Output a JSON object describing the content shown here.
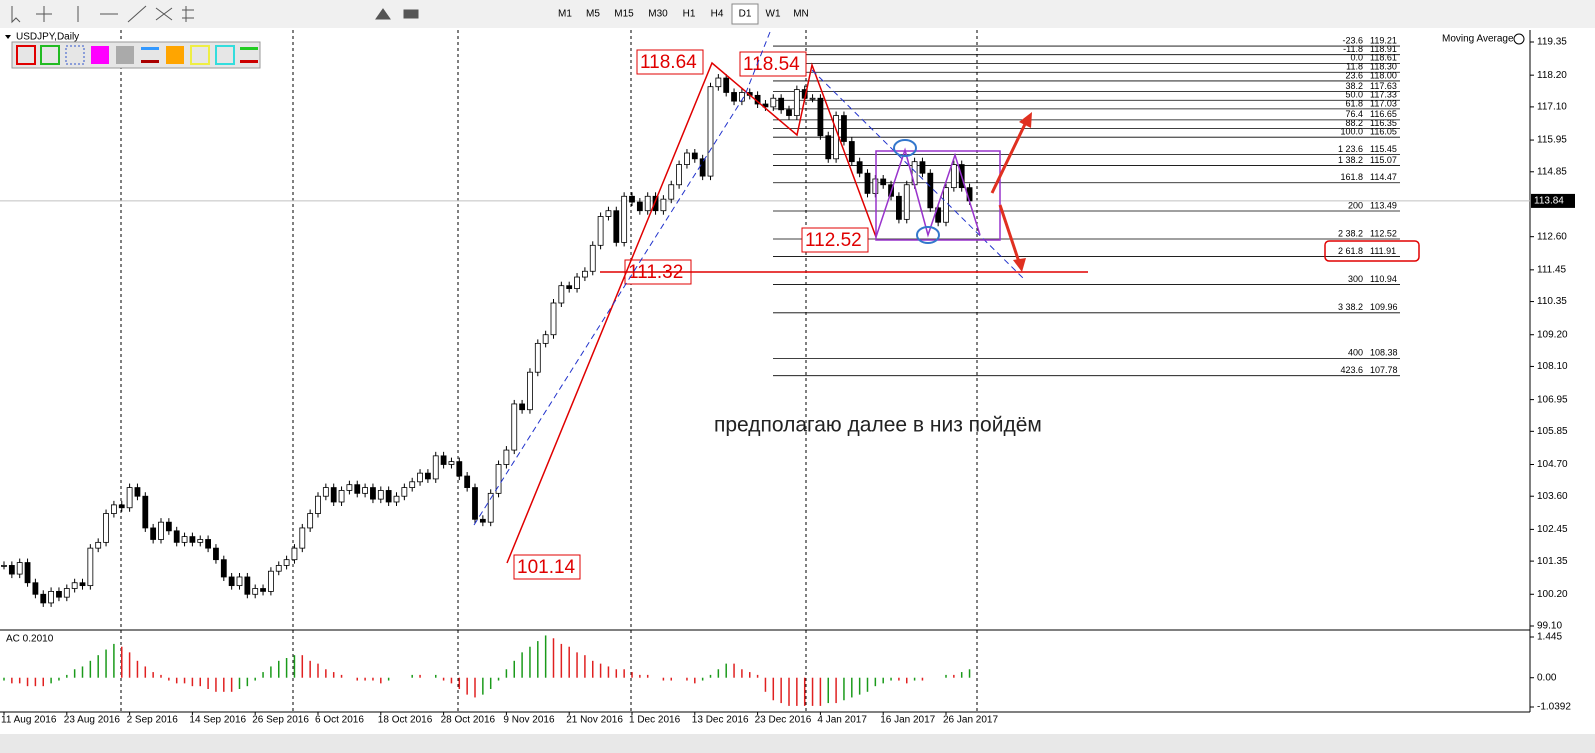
{
  "toolbar": {
    "timeframes": [
      "M1",
      "M5",
      "M15",
      "M30",
      "H1",
      "H4",
      "D1",
      "W1",
      "MN"
    ],
    "active": "D1"
  },
  "chart_data": {
    "type": "candlestick",
    "title": "USDJPY,Daily",
    "indicator_label": "Moving Average",
    "up_color": "#ffffff",
    "down_color": "#000000",
    "categories": [
      "11 Aug 2016",
      null,
      null,
      null,
      null,
      null,
      null,
      null,
      "23 Aug 2016",
      null,
      null,
      null,
      null,
      null,
      null,
      null,
      "2 Sep 2016",
      null,
      null,
      null,
      null,
      null,
      null,
      null,
      "14 Sep 2016",
      null,
      null,
      null,
      null,
      null,
      null,
      null,
      "26 Sep 2016",
      null,
      null,
      null,
      null,
      null,
      null,
      null,
      "6 Oct 2016",
      null,
      null,
      null,
      null,
      null,
      null,
      null,
      "18 Oct 2016",
      null,
      null,
      null,
      null,
      null,
      null,
      null,
      "28 Oct 2016",
      null,
      null,
      null,
      null,
      null,
      null,
      null,
      "9 Nov 2016",
      null,
      null,
      null,
      null,
      null,
      null,
      null,
      "21 Nov 2016",
      null,
      null,
      null,
      null,
      null,
      null,
      null,
      "1 Dec 2016",
      null,
      null,
      null,
      null,
      null,
      null,
      null,
      "13 Dec 2016",
      null,
      null,
      null,
      null,
      null,
      null,
      null,
      "23 Dec 2016",
      null,
      null,
      null,
      null,
      null,
      null,
      null,
      "4 Jan 2017",
      null,
      null,
      null,
      null,
      null,
      null,
      null,
      "16 Jan 2017",
      null,
      null,
      null,
      null,
      null,
      null,
      null,
      "26 Jan 2017",
      null,
      null,
      null
    ],
    "values": [
      101.2,
      100.9,
      101.3,
      100.6,
      100.2,
      99.9,
      100.3,
      100.1,
      100.4,
      100.6,
      100.5,
      101.8,
      102.0,
      103.0,
      103.3,
      103.2,
      103.9,
      103.6,
      102.5,
      102.1,
      102.7,
      102.4,
      102.0,
      102.2,
      102.0,
      102.1,
      101.8,
      101.4,
      100.8,
      100.5,
      100.8,
      100.2,
      100.4,
      100.3,
      101.0,
      101.2,
      101.4,
      101.8,
      102.5,
      103.0,
      103.6,
      103.9,
      103.4,
      103.8,
      104.0,
      103.7,
      103.9,
      103.5,
      103.8,
      103.4,
      103.6,
      103.9,
      104.1,
      104.4,
      104.2,
      105.0,
      104.7,
      104.8,
      104.3,
      103.9,
      102.8,
      102.7,
      103.7,
      104.7,
      105.2,
      106.8,
      106.6,
      107.9,
      108.9,
      109.2,
      110.3,
      110.9,
      110.8,
      111.2,
      111.4,
      112.3,
      113.3,
      113.5,
      112.4,
      114.0,
      113.8,
      113.5,
      114.0,
      113.5,
      113.9,
      114.4,
      115.1,
      115.5,
      115.3,
      114.7,
      117.8,
      118.1,
      117.6,
      117.3,
      117.6,
      117.5,
      117.2,
      117.1,
      117.4,
      117.0,
      116.8,
      117.7,
      117.4,
      117.4,
      116.1,
      115.3,
      116.8,
      115.9,
      115.2,
      114.8,
      114.1,
      114.6,
      114.4,
      114.0,
      113.2,
      114.4,
      115.2,
      114.8,
      113.6,
      113.1,
      114.3,
      115.1,
      114.3,
      113.84
    ],
    "ylim": [
      99.1,
      119.35
    ],
    "yticks": [
      119.35,
      {
        "value": 118.2,
        "label": "118.20"
      },
      {
        "value": 117.1,
        "label": "117.10"
      },
      115.95,
      114.85,
      {
        "value": 112.6,
        "label": "112.60"
      },
      111.45,
      110.35,
      {
        "value": 109.2,
        "label": "109.20"
      },
      {
        "value": 108.1,
        "label": "108.10"
      },
      106.95,
      105.85,
      {
        "value": 104.7,
        "label": "104.70"
      },
      {
        "value": 103.6,
        "label": "103.60"
      },
      102.45,
      101.35,
      {
        "value": 100.2,
        "label": "100.20"
      },
      {
        "value": 99.1,
        "label": "99.10"
      }
    ],
    "current_price": 113.84,
    "fib_levels": [
      {
        "level": "-23.6",
        "price": 119.21
      },
      {
        "level": "-11.8",
        "price": 118.91
      },
      {
        "level": "0.0",
        "price": 118.61
      },
      {
        "level": "11.8",
        "price": {
          "value": 118.3,
          "label": "118.30"
        }
      },
      {
        "level": "23.6",
        "price": {
          "value": 118,
          "label": "118.00"
        }
      },
      {
        "level": "38.2",
        "price": 117.63
      },
      {
        "level": "50.0",
        "price": 117.33
      },
      {
        "level": "61.8",
        "price": 117.03
      },
      {
        "level": "76.4",
        "price": 116.65
      },
      {
        "level": "88.2",
        "price": 116.35
      },
      {
        "level": "100.0",
        "price": 116.05
      },
      {
        "level": "1 23.6",
        "price": 115.45
      },
      {
        "level": "1 38.2",
        "price": 115.07
      },
      {
        "level": "161.8",
        "price": 114.47
      },
      {
        "level": "200",
        "price": 113.49
      },
      {
        "level": "2 38.2",
        "price": 112.52
      },
      {
        "level": "2 61.8",
        "price": 111.91
      },
      {
        "level": "300",
        "price": 110.94
      },
      {
        "level": "3 38.2",
        "price": 109.96
      },
      {
        "level": "400",
        "price": 108.38
      },
      {
        "level": "423.6",
        "price": 107.78
      }
    ],
    "price_labels": [
      118.64,
      118.54,
      112.52,
      111.32,
      101.14
    ],
    "note": "предполагаю далее в низ пойдём",
    "indicator": {
      "title": "AC 0.2010",
      "up_color": "#1a9a1a",
      "down_color": "#e02020",
      "ylim": [
        -1.0392,
        1.445
      ],
      "yticks": [
        1.445,
        {
          "value": 0,
          "label": "0.00"
        },
        -1.0392
      ],
      "values": [
        -0.1,
        -0.2,
        -0.2,
        -0.3,
        -0.3,
        -0.3,
        -0.2,
        -0.1,
        0.1,
        0.3,
        0.4,
        0.6,
        0.8,
        1.0,
        1.2,
        1.1,
        0.9,
        0.6,
        0.4,
        0.2,
        0.1,
        -0.1,
        -0.2,
        -0.2,
        -0.3,
        -0.3,
        -0.4,
        -0.5,
        -0.5,
        -0.5,
        -0.4,
        -0.3,
        -0.1,
        0.2,
        0.4,
        0.6,
        0.7,
        0.8,
        0.8,
        0.6,
        0.5,
        0.3,
        0.2,
        0.1,
        0.0,
        -0.1,
        -0.1,
        -0.1,
        -0.2,
        -0.1,
        0.0,
        0.0,
        0.1,
        0.1,
        0.0,
        0.1,
        -0.1,
        -0.2,
        -0.4,
        -0.6,
        -0.7,
        -0.6,
        -0.4,
        -0.1,
        0.3,
        0.6,
        0.9,
        1.1,
        1.3,
        1.5,
        1.4,
        1.2,
        1.1,
        0.9,
        0.8,
        0.6,
        0.5,
        0.4,
        0.3,
        0.3,
        0.2,
        0.1,
        0.1,
        0.0,
        -0.1,
        -0.1,
        0.0,
        -0.1,
        -0.2,
        -0.1,
        0.1,
        0.3,
        0.5,
        0.5,
        0.3,
        0.2,
        0.1,
        -0.5,
        -0.8,
        -0.9,
        -1.0,
        -1.0,
        -1.0,
        -1.0,
        -1.0,
        -0.9,
        -0.9,
        -0.8,
        -0.7,
        -0.6,
        -0.5,
        -0.3,
        -0.2,
        -0.1,
        -0.1,
        -0.2,
        -0.1,
        -0.1,
        0.0,
        0.0,
        0.1,
        0.1,
        0.2,
        0.3
      ]
    }
  }
}
